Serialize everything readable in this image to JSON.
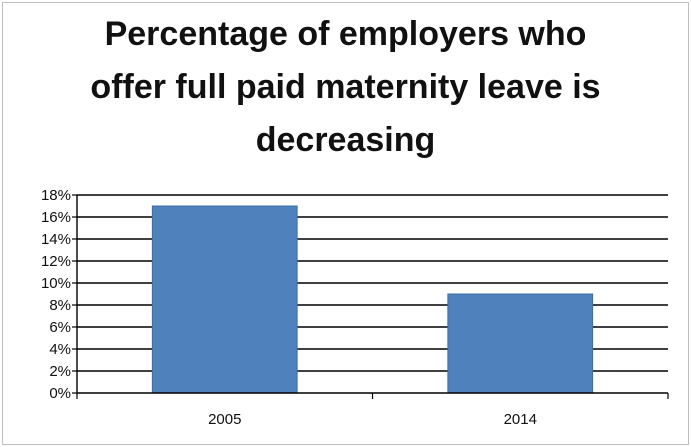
{
  "chart_data": {
    "type": "bar",
    "title_lines": [
      "Percentage of employers who",
      "offer full paid maternity leave is",
      "decreasing"
    ],
    "categories": [
      "2005",
      "2014"
    ],
    "values": [
      17,
      9
    ],
    "yticks": [
      "0%",
      "2%",
      "4%",
      "6%",
      "8%",
      "10%",
      "12%",
      "14%",
      "16%",
      "18%"
    ],
    "ylim": [
      0,
      18
    ],
    "ytick_step": 2,
    "grid": true,
    "legend": "none",
    "bar_color": "#4f81bd",
    "bar_edge_color": "#3f6ea5",
    "gridline_color": "#000000"
  }
}
